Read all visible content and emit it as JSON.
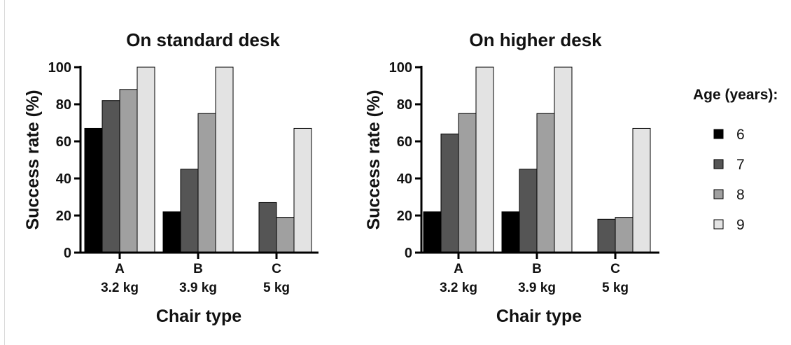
{
  "chart_data": [
    {
      "type": "bar",
      "title": "On standard desk",
      "xlabel": "Chair type",
      "ylabel": "Success rate (%)",
      "ylim": [
        0,
        100
      ],
      "yticks": [
        0,
        20,
        40,
        60,
        80,
        100
      ],
      "categories": [
        {
          "name": "A",
          "sub": "3.2 kg"
        },
        {
          "name": "B",
          "sub": "3.9 kg"
        },
        {
          "name": "C",
          "sub": "5 kg"
        }
      ],
      "series": [
        {
          "name": "6",
          "color": "#000000",
          "values": [
            67,
            22,
            0
          ]
        },
        {
          "name": "7",
          "color": "#555555",
          "values": [
            82,
            45,
            27
          ]
        },
        {
          "name": "8",
          "color": "#a0a0a0",
          "values": [
            88,
            75,
            19
          ]
        },
        {
          "name": "9",
          "color": "#e3e3e3",
          "values": [
            100,
            100,
            67
          ]
        }
      ]
    },
    {
      "type": "bar",
      "title": "On higher desk",
      "xlabel": "Chair type",
      "ylabel": "Success rate (%)",
      "ylim": [
        0,
        100
      ],
      "yticks": [
        0,
        20,
        40,
        60,
        80,
        100
      ],
      "categories": [
        {
          "name": "A",
          "sub": "3.2 kg"
        },
        {
          "name": "B",
          "sub": "3.9 kg"
        },
        {
          "name": "C",
          "sub": "5 kg"
        }
      ],
      "series": [
        {
          "name": "6",
          "color": "#000000",
          "values": [
            22,
            22,
            0
          ]
        },
        {
          "name": "7",
          "color": "#555555",
          "values": [
            64,
            45,
            18
          ]
        },
        {
          "name": "8",
          "color": "#a0a0a0",
          "values": [
            75,
            75,
            19
          ]
        },
        {
          "name": "9",
          "color": "#e3e3e3",
          "values": [
            100,
            100,
            67
          ]
        }
      ]
    }
  ],
  "legend": {
    "title": "Age (years):",
    "placement": "right"
  }
}
